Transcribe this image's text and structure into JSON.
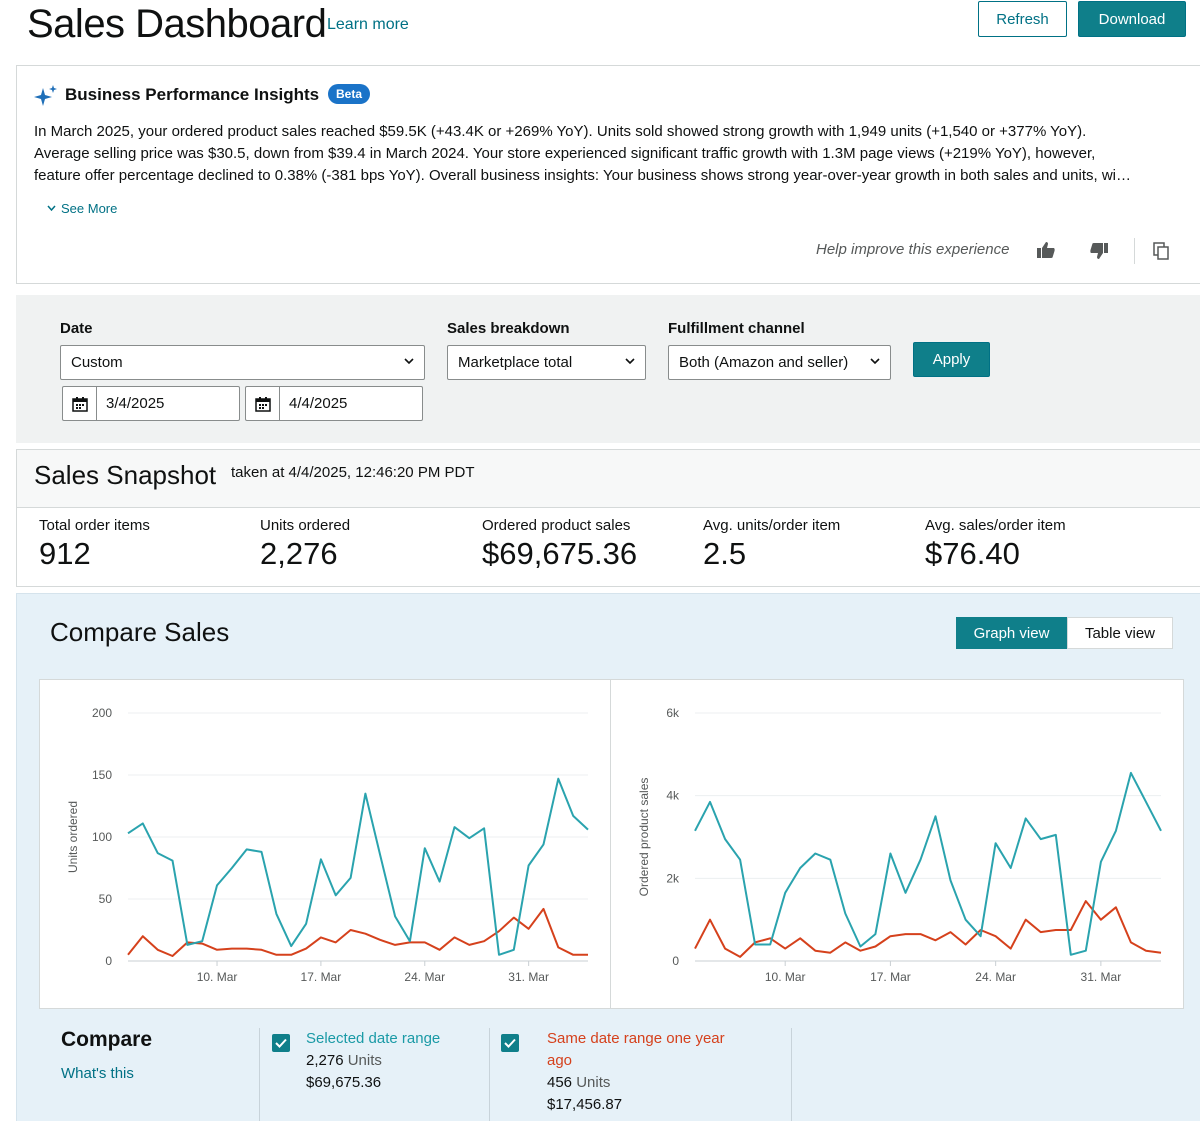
{
  "header": {
    "title": "Sales Dashboard",
    "learn_more": "Learn more",
    "refresh": "Refresh",
    "download": "Download"
  },
  "insights": {
    "title": "Business Performance Insights",
    "badge": "Beta",
    "lines": [
      "In March 2025, your ordered product sales reached $59.5K (+43.4K or +269% YoY). Units sold showed strong growth with 1,949 units (+1,540 or +377% YoY).",
      "Average selling price was $30.5, down from $39.4 in March 2024. Your store experienced significant traffic growth with 1.3M page views (+219% YoY), however,",
      "feature offer percentage declined to 0.38% (-381 bps YoY). Overall business insights: Your business shows strong year-over-year growth in both sales and units, wi…"
    ],
    "see_more": "See More",
    "help_text": "Help improve this experience"
  },
  "filters": {
    "date_label": "Date",
    "date_value": "Custom",
    "start_date": "3/4/2025",
    "end_date": "4/4/2025",
    "breakdown_label": "Sales breakdown",
    "breakdown_value": "Marketplace total",
    "channel_label": "Fulfillment channel",
    "channel_value": "Both (Amazon and seller)",
    "apply": "Apply"
  },
  "snapshot": {
    "title": "Sales Snapshot",
    "taken": "taken at 4/4/2025, 12:46:20 PM PDT",
    "metrics": [
      {
        "label": "Total order items",
        "value": "912"
      },
      {
        "label": "Units ordered",
        "value": "2,276"
      },
      {
        "label": "Ordered product sales",
        "value": "$69,675.36"
      },
      {
        "label": "Avg. units/order item",
        "value": "2.5"
      },
      {
        "label": "Avg. sales/order item",
        "value": "$76.40"
      }
    ]
  },
  "compare": {
    "title": "Compare Sales",
    "graph_view": "Graph view",
    "table_view": "Table view",
    "compare_heading": "Compare",
    "whats_this": "What's this",
    "selected": {
      "label": "Selected date range",
      "units": "2,276",
      "units_suffix": "Units",
      "sales": "$69,675.36",
      "color": "#2aa3ae"
    },
    "previous": {
      "label_line1": "Same date range one year",
      "label_line2": "ago",
      "units": "456",
      "units_suffix": "Units",
      "sales": "$17,456.87",
      "color": "#d5411c"
    }
  },
  "chart_data": [
    {
      "type": "line",
      "ylabel": "Units ordered",
      "ylim": [
        0,
        200
      ],
      "yticks": [
        "0",
        "50",
        "100",
        "150",
        "200"
      ],
      "xticks": [
        "10. Mar",
        "17. Mar",
        "24. Mar",
        "31. Mar"
      ],
      "xtick_index": [
        6,
        13,
        20,
        27
      ],
      "series": [
        {
          "name": "Selected date range",
          "color": "#2aa3ae",
          "values": [
            103,
            111,
            87,
            81,
            13,
            16,
            61,
            75,
            90,
            88,
            38,
            12,
            30,
            82,
            53,
            67,
            135,
            85,
            36,
            16,
            91,
            64,
            108,
            99,
            107,
            5,
            9,
            77,
            94,
            147,
            117,
            106
          ]
        },
        {
          "name": "Same date range one year ago",
          "color": "#d5411c",
          "values": [
            5,
            20,
            9,
            4,
            15,
            14,
            9,
            10,
            10,
            9,
            5,
            5,
            10,
            19,
            15,
            25,
            22,
            17,
            13,
            15,
            15,
            9,
            19,
            13,
            16,
            24,
            35,
            26,
            42,
            11,
            5,
            5
          ]
        }
      ]
    },
    {
      "type": "line",
      "ylabel": "Ordered product sales",
      "ylim": [
        0,
        6000
      ],
      "yticks": [
        "0",
        "2k",
        "4k",
        "6k"
      ],
      "xticks": [
        "10. Mar",
        "17. Mar",
        "24. Mar",
        "31. Mar"
      ],
      "xtick_index": [
        6,
        13,
        20,
        27
      ],
      "series": [
        {
          "name": "Selected date range",
          "color": "#2aa3ae",
          "values": [
            3150,
            3850,
            2950,
            2450,
            400,
            400,
            1650,
            2250,
            2600,
            2450,
            1150,
            350,
            650,
            2600,
            1650,
            2450,
            3500,
            1950,
            1000,
            600,
            2850,
            2250,
            3450,
            2950,
            3050,
            150,
            250,
            2400,
            3150,
            4550,
            3850,
            3150
          ]
        },
        {
          "name": "Same date range one year ago",
          "color": "#d5411c",
          "values": [
            300,
            1000,
            300,
            100,
            450,
            550,
            300,
            550,
            250,
            200,
            450,
            250,
            350,
            600,
            650,
            650,
            500,
            700,
            400,
            750,
            600,
            300,
            1000,
            700,
            750,
            750,
            1450,
            1000,
            1300,
            450,
            250,
            200
          ]
        }
      ]
    }
  ]
}
